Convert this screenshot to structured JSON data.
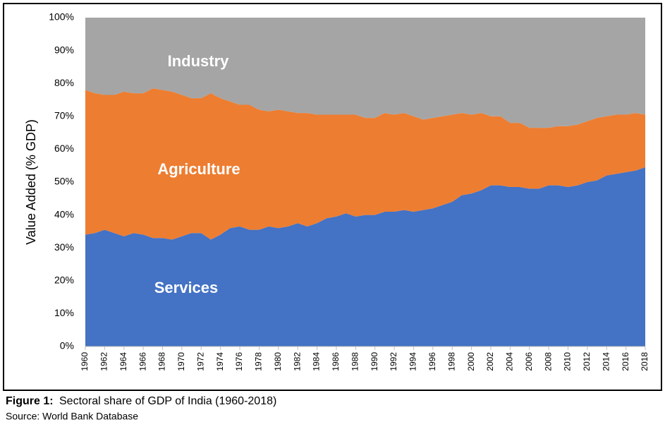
{
  "chart_data": {
    "type": "stacked_area",
    "y_label": "Value Added (% GDP)",
    "caption_label": "Figure 1:",
    "caption": "Sectoral share of GDP of India (1960-2018)",
    "source": "Source: World Bank Database",
    "x": [
      1960,
      1961,
      1962,
      1963,
      1964,
      1965,
      1966,
      1967,
      1968,
      1969,
      1970,
      1971,
      1972,
      1973,
      1974,
      1975,
      1976,
      1977,
      1978,
      1979,
      1980,
      1981,
      1982,
      1983,
      1984,
      1985,
      1986,
      1987,
      1988,
      1989,
      1990,
      1991,
      1992,
      1993,
      1994,
      1995,
      1996,
      1997,
      1998,
      1999,
      2000,
      2001,
      2002,
      2003,
      2004,
      2005,
      2006,
      2007,
      2008,
      2009,
      2010,
      2011,
      2012,
      2013,
      2014,
      2015,
      2016,
      2017,
      2018
    ],
    "xlim": [
      1960,
      2018
    ],
    "xticks": [
      1960,
      1962,
      1964,
      1966,
      1968,
      1970,
      1972,
      1974,
      1976,
      1978,
      1980,
      1982,
      1984,
      1986,
      1988,
      1990,
      1992,
      1994,
      1996,
      1998,
      2000,
      2002,
      2004,
      2006,
      2008,
      2010,
      2012,
      2014,
      2016,
      2018
    ],
    "ylim": [
      0,
      100
    ],
    "yticks": [
      {
        "value": 0,
        "label": "0%"
      },
      {
        "value": 10,
        "label": "10%"
      },
      {
        "value": 20,
        "label": "20%"
      },
      {
        "value": 30,
        "label": "30%"
      },
      {
        "value": 40,
        "label": "40%"
      },
      {
        "value": 50,
        "label": "50%"
      },
      {
        "value": 60,
        "label": "60%"
      },
      {
        "value": 70,
        "label": "70%"
      },
      {
        "value": 80,
        "label": "80%"
      },
      {
        "value": 90,
        "label": "90%"
      },
      {
        "value": 100,
        "label": "100%"
      }
    ],
    "series": [
      {
        "name": "Services",
        "color": "#4472c4",
        "values": [
          34,
          34.5,
          35.5,
          34.5,
          33.5,
          34.5,
          34,
          33,
          33,
          32.5,
          33.5,
          34.5,
          34.5,
          32.5,
          34,
          36,
          36.5,
          35.5,
          35.5,
          36.5,
          36,
          36.5,
          37.5,
          36.5,
          37.5,
          39,
          39.5,
          40.5,
          39.5,
          40,
          40,
          41,
          41,
          41.5,
          41,
          41.5,
          42,
          43,
          44,
          46,
          46.5,
          47.5,
          49,
          49,
          48.5,
          48.5,
          48,
          48,
          49,
          49,
          48.5,
          49,
          50,
          50.5,
          52,
          52.5,
          53,
          53.5,
          54.5
        ]
      },
      {
        "name": "Agriculture",
        "color": "#ed7d31",
        "values": [
          44,
          42.5,
          41,
          42,
          44,
          42.5,
          43,
          45.5,
          45,
          45,
          43,
          41,
          41,
          44.5,
          41.5,
          38.5,
          37,
          38,
          36.5,
          35,
          36,
          35,
          33.5,
          34.5,
          33,
          31.5,
          31,
          30,
          31,
          29.5,
          29.5,
          30,
          29.5,
          29.5,
          29,
          27.5,
          27.5,
          27,
          26.5,
          25,
          24,
          23.5,
          21,
          21,
          19.5,
          19.5,
          18.5,
          18.5,
          17.5,
          18,
          18.5,
          18.5,
          18.5,
          19,
          18,
          18,
          17.5,
          17.5,
          16
        ]
      },
      {
        "name": "Industry",
        "color": "#a5a5a5",
        "values": [
          22,
          23,
          23.5,
          23.5,
          22.5,
          23,
          23,
          21.5,
          22,
          22.5,
          23.5,
          24.5,
          24.5,
          23,
          24.5,
          25.5,
          26.5,
          26.5,
          28,
          28.5,
          28,
          28.5,
          29,
          29,
          29.5,
          29.5,
          29.5,
          29.5,
          29.5,
          30.5,
          30.5,
          29,
          29.5,
          29,
          30,
          31,
          30.5,
          30,
          29.5,
          29,
          29.5,
          29,
          30,
          30,
          32,
          32,
          33.5,
          33.5,
          33.5,
          33,
          33,
          32.5,
          31.5,
          30.5,
          30,
          29.5,
          29.5,
          29,
          29.5
        ]
      }
    ]
  }
}
